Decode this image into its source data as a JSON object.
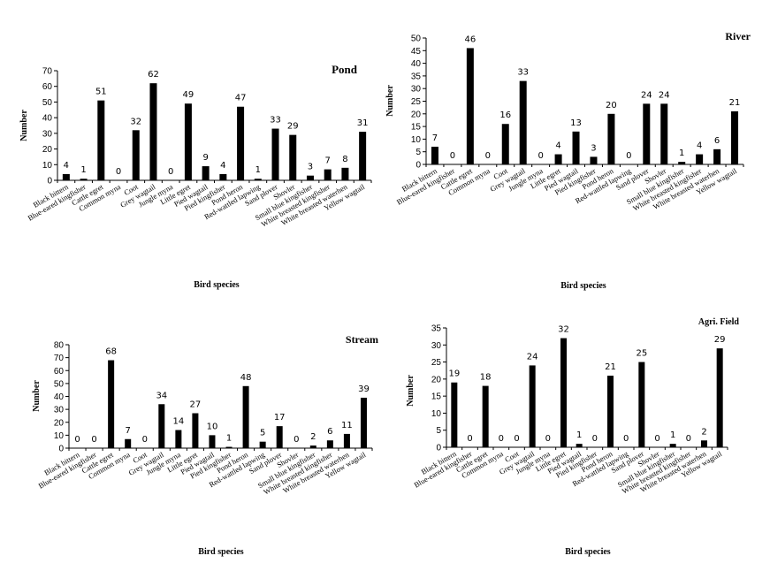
{
  "chart_data": [
    {
      "type": "bar",
      "title": "Pond",
      "xlabel": "Bird species",
      "ylabel": "Number",
      "ylim": [
        0,
        70
      ],
      "yticks": [
        0,
        10,
        20,
        30,
        40,
        50,
        60,
        70
      ],
      "categories": [
        "Black bittern",
        "Blue-eared kingfisher",
        "Cattle egret",
        "Common myna",
        "Coot",
        "Grey wagtail",
        "Jungle myna",
        "Little egret",
        "Pied wagtail",
        "Pied kingfisher",
        "Pond heron",
        "Red-wattled lapwing",
        "Sand plover",
        "Shovler",
        "Small blue kingfisher",
        "White breasted kingfisher",
        "White breasted waterhen",
        "Yellow wagtail"
      ],
      "values": [
        4,
        1,
        51,
        0,
        32,
        62,
        0,
        49,
        9,
        4,
        47,
        1,
        33,
        29,
        3,
        7,
        8,
        31
      ],
      "data_labels": [
        "4",
        "1",
        "51",
        "0",
        "32",
        "62",
        "0",
        "49",
        "9",
        "4",
        "47",
        "1",
        "33",
        "29",
        "3",
        "7",
        "8",
        "31"
      ],
      "color": "#000000",
      "grid": false,
      "legend": "none"
    },
    {
      "type": "bar",
      "title": "River",
      "xlabel": "Bird species",
      "ylabel": "Number",
      "ylim": [
        0,
        50
      ],
      "yticks": [
        0,
        5,
        10,
        15,
        20,
        25,
        30,
        35,
        40,
        45,
        50
      ],
      "categories": [
        "Black bittern",
        "Blue-eared kingfisher",
        "Cattle egret",
        "Common myna",
        "Coot",
        "Grey wagtail",
        "Jungle myna",
        "Little egret",
        "Pied wagtail",
        "Pied kingfisher",
        "Pond heron",
        "Red-wattled lapwing",
        "Sand plover",
        "Shovler",
        "Small blue kingfisher",
        "White breasted kingfisher",
        "White breasted waterhen",
        "Yellow wagtail"
      ],
      "values": [
        7,
        0,
        46,
        0,
        16,
        33,
        0,
        4,
        13,
        3,
        20,
        0,
        24,
        24,
        1,
        4,
        6,
        21
      ],
      "data_labels": [
        "7",
        "0",
        "46",
        "0",
        "16",
        "33",
        "0",
        "4",
        "13",
        "3",
        "20",
        "0",
        "24",
        "24",
        "1",
        "4",
        "6",
        "21"
      ],
      "color": "#000000",
      "grid": false,
      "legend": "none"
    },
    {
      "type": "bar",
      "title": "Stream",
      "xlabel": "Bird species",
      "ylabel": "Number",
      "ylim": [
        0,
        80
      ],
      "yticks": [
        0,
        10,
        20,
        30,
        40,
        50,
        60,
        70,
        80
      ],
      "categories": [
        "Black bittern",
        "Blue-eared kingfisher",
        "Cattle egret",
        "Common myna",
        "Coot",
        "Grey wagtail",
        "Jungle myna",
        "Little egret",
        "Pied wagtail",
        "Pied kingfisher",
        "Pond heron",
        "Red-wattled lapwing",
        "Sand plover",
        "Shovler",
        "Small blue kingfisher",
        "White breasted kingfisher",
        "White breasted waterhen",
        "Yellow wagtail"
      ],
      "values": [
        0,
        0,
        68,
        7,
        0,
        34,
        14,
        27,
        10,
        1,
        48,
        5,
        17,
        0,
        2,
        6,
        11,
        39
      ],
      "data_labels": [
        "0",
        "0",
        "68",
        "7",
        "0",
        "34",
        "14",
        "27",
        "10",
        "1",
        "48",
        "5",
        "17",
        "0",
        "2",
        "6",
        "11",
        "39"
      ],
      "color": "#000000",
      "grid": false,
      "legend": "none"
    },
    {
      "type": "bar",
      "title": "Agri. Field",
      "xlabel": "Bird species",
      "ylabel": "Number",
      "ylim": [
        0,
        35
      ],
      "yticks": [
        0,
        5,
        10,
        15,
        20,
        25,
        30,
        35
      ],
      "categories": [
        "Black bittern",
        "Blue-eared kingfisher",
        "Cattle egret",
        "Common myna",
        "Coot",
        "Grey wagtail",
        "Jungle myna",
        "Little egret",
        "Pied wagtail",
        "Pied kingfisher",
        "Pond heron",
        "Red-wattled lapwing",
        "Sand plover",
        "Shovler",
        "Small blue kingfisher",
        "White breasted kingfisher",
        "White breasted waterhen",
        "Yellow wagtail"
      ],
      "values": [
        19,
        0,
        18,
        0,
        0,
        24,
        0,
        32,
        1,
        0,
        21,
        0,
        25,
        0,
        1,
        0,
        2,
        29
      ],
      "data_labels": [
        "19",
        "0",
        "18",
        "0",
        "0",
        "24",
        "0",
        "32",
        "1",
        "0",
        "21",
        "0",
        "25",
        "0",
        "1",
        "0",
        "2",
        "29"
      ],
      "color": "#000000",
      "grid": false,
      "legend": "none"
    }
  ]
}
